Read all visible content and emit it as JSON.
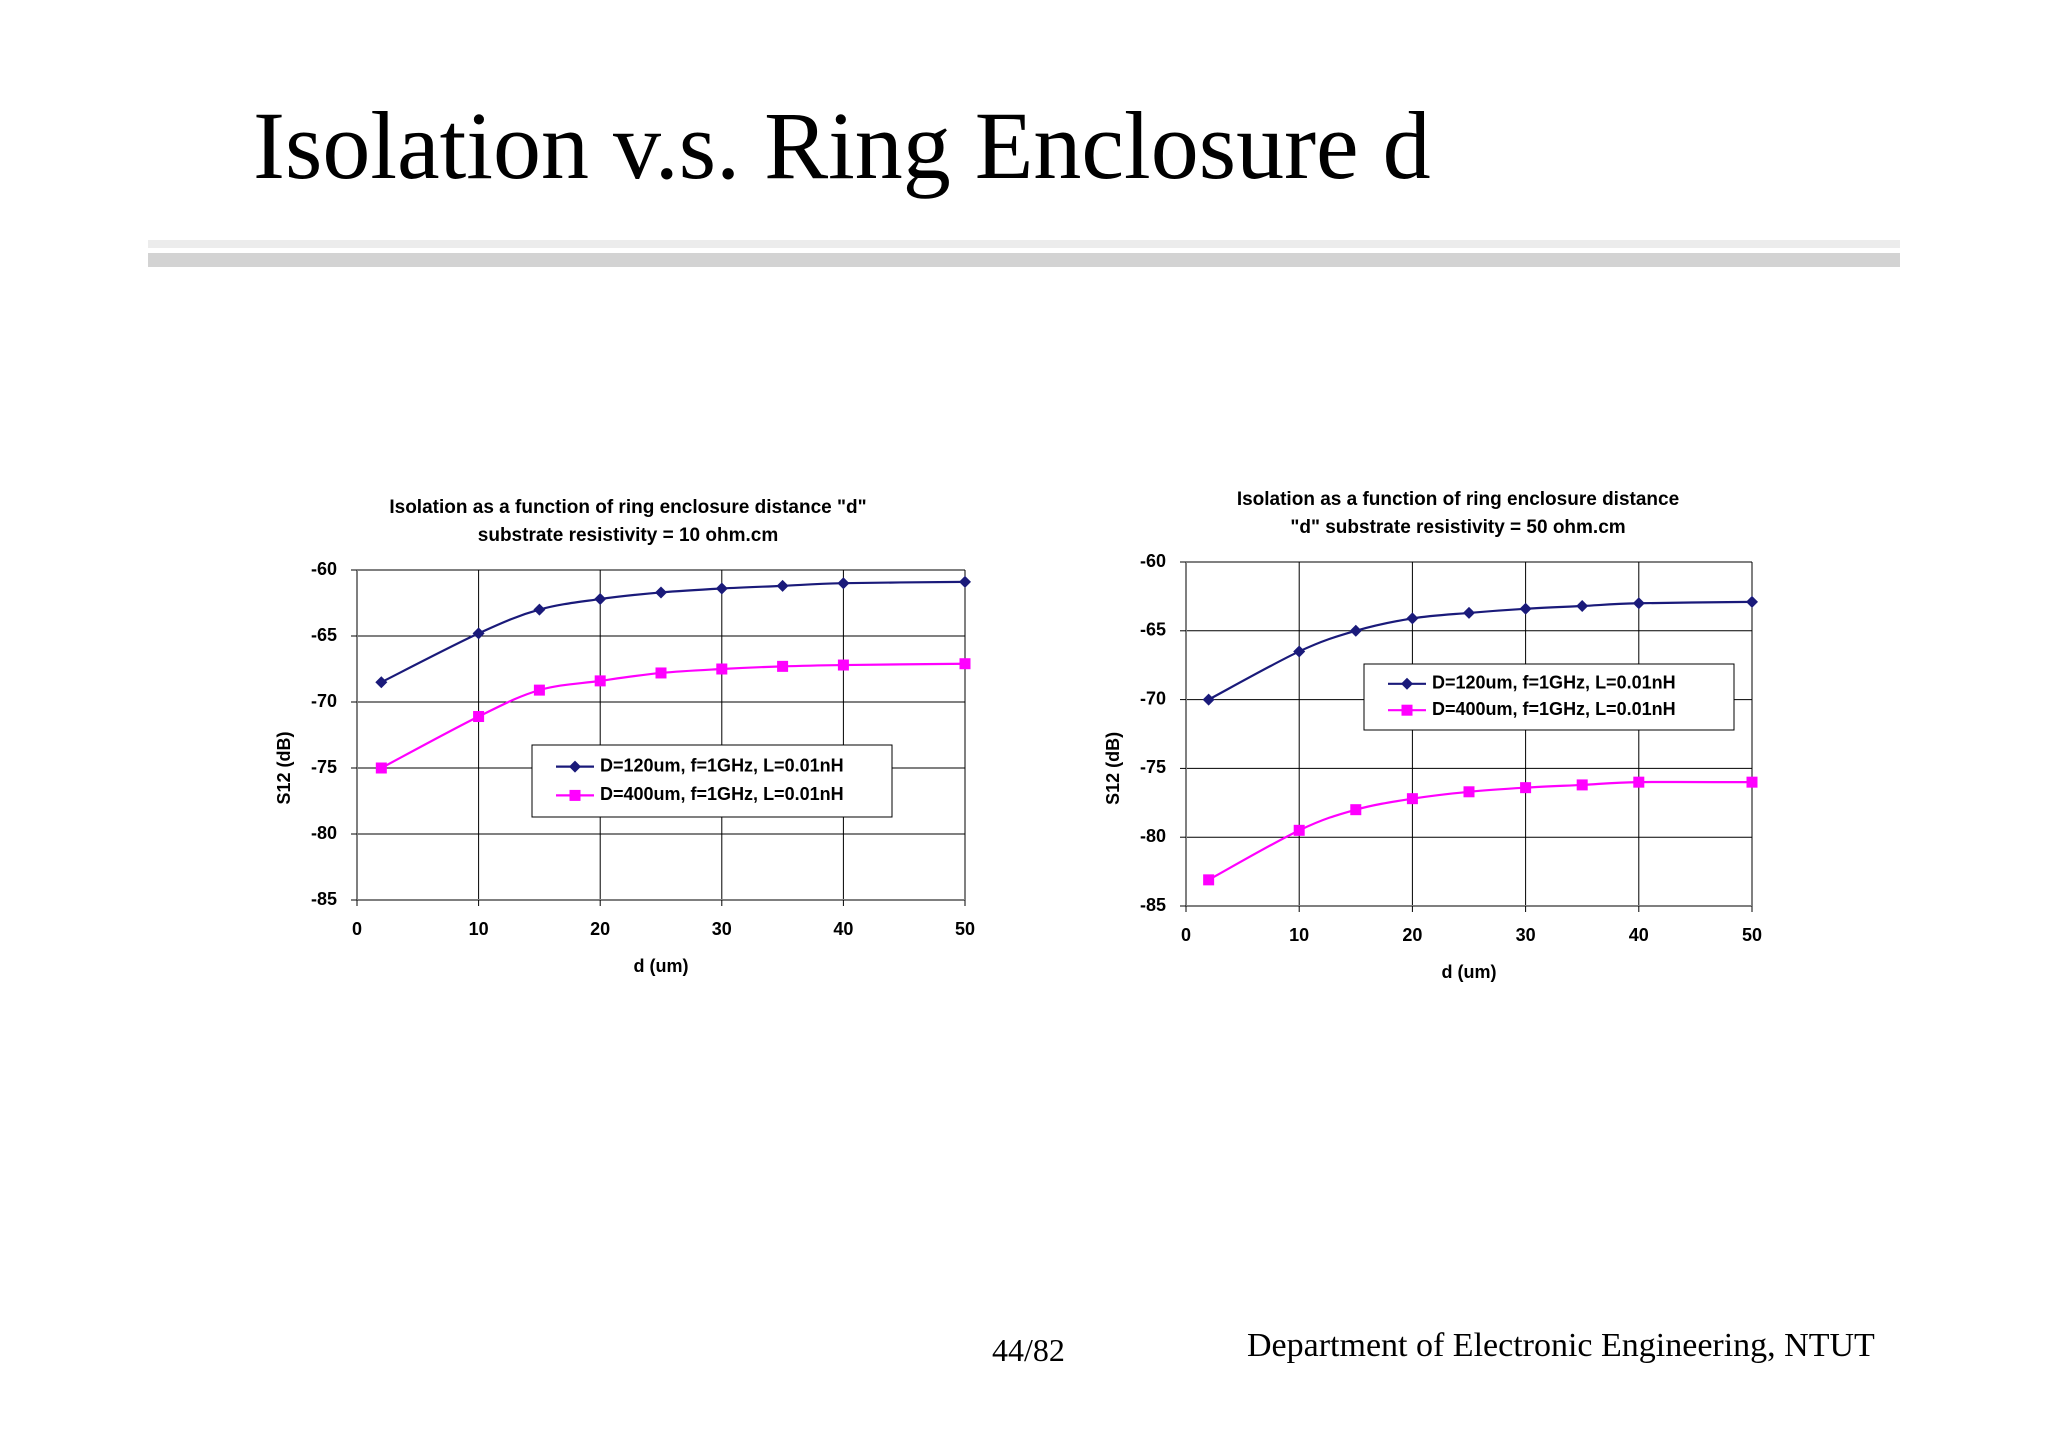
{
  "slide": {
    "title": "Isolation v.s. Ring Enclosure d",
    "page": "44/82",
    "department": "Department of Electronic Engineering, NTUT"
  },
  "chart_data": [
    {
      "type": "line",
      "title_lines": [
        "Isolation as a function of ring enclosure distance \"d\"",
        "substrate resistivity = 10 ohm.cm"
      ],
      "xlabel": "d (um)",
      "ylabel": "S12 (dB)",
      "xlim": [
        0,
        50
      ],
      "ylim": [
        -85,
        -60
      ],
      "xticks": [
        0,
        10,
        20,
        30,
        40,
        50
      ],
      "yticks": [
        -60,
        -65,
        -70,
        -75,
        -80,
        -85
      ],
      "grid": true,
      "legend_position": "center-right",
      "series": [
        {
          "name": "D=120um, f=1GHz, L=0.01nH",
          "color": "#1a1a7a",
          "marker": "diamond",
          "x": [
            2,
            10,
            15,
            20,
            25,
            30,
            35,
            40,
            50
          ],
          "y": [
            -68.5,
            -64.8,
            -63.0,
            -62.2,
            -61.7,
            -61.4,
            -61.2,
            -61.0,
            -60.9
          ]
        },
        {
          "name": "D=400um, f=1GHz, L=0.01nH",
          "color": "#ff00ff",
          "marker": "square",
          "x": [
            2,
            10,
            15,
            20,
            25,
            30,
            35,
            40,
            50
          ],
          "y": [
            -75.0,
            -71.1,
            -69.1,
            -68.4,
            -67.8,
            -67.5,
            -67.3,
            -67.2,
            -67.1
          ]
        }
      ]
    },
    {
      "type": "line",
      "title_lines": [
        "Isolation as a function of ring enclosure distance",
        "\"d\"  substrate resistivity = 50 ohm.cm"
      ],
      "xlabel": "d (um)",
      "ylabel": "S12 (dB)",
      "xlim": [
        0,
        50
      ],
      "ylim": [
        -85,
        -60
      ],
      "xticks": [
        0,
        10,
        20,
        30,
        40,
        50
      ],
      "yticks": [
        -60,
        -65,
        -70,
        -75,
        -80,
        -85
      ],
      "grid": true,
      "legend_position": "upper-right",
      "series": [
        {
          "name": "D=120um, f=1GHz, L=0.01nH",
          "color": "#1a1a7a",
          "marker": "diamond",
          "x": [
            2,
            10,
            15,
            20,
            25,
            30,
            35,
            40,
            50
          ],
          "y": [
            -70.0,
            -66.5,
            -65.0,
            -64.1,
            -63.7,
            -63.4,
            -63.2,
            -63.0,
            -62.9
          ]
        },
        {
          "name": "D=400um, f=1GHz, L=0.01nH",
          "color": "#ff00ff",
          "marker": "square",
          "x": [
            2,
            10,
            15,
            20,
            25,
            30,
            35,
            40,
            50
          ],
          "y": [
            -83.1,
            -79.5,
            -78.0,
            -77.2,
            -76.7,
            -76.4,
            -76.2,
            -76.0,
            -76.0
          ]
        }
      ]
    }
  ]
}
